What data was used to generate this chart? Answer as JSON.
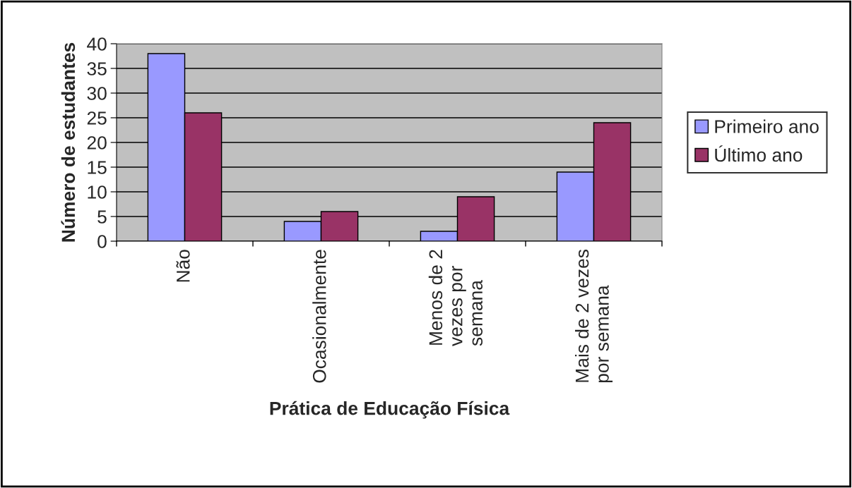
{
  "chart_data": {
    "type": "bar",
    "xlabel": "Prática de Educação Física",
    "ylabel": "Número de estudantes",
    "categories": [
      "Não",
      "Ocasionalmente",
      "Menos de 2\nvezes por\nsemana",
      "Mais de 2 vezes\npor semana"
    ],
    "series": [
      {
        "name": "Primeiro ano",
        "color": "#9999ff",
        "values": [
          38,
          4,
          2,
          14
        ]
      },
      {
        "name": "Último ano",
        "color": "#993366",
        "values": [
          26,
          6,
          9,
          24
        ]
      }
    ],
    "ylim": [
      0,
      40
    ],
    "yticks": [
      0,
      5,
      10,
      15,
      20,
      25,
      30,
      35,
      40
    ],
    "grid": "y",
    "legend": "right"
  }
}
